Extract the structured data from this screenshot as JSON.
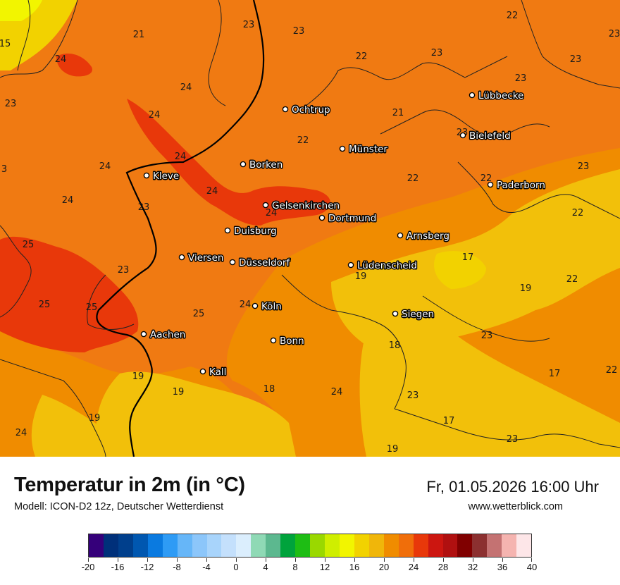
{
  "header": {
    "title": "Temperatur in 2m (in °C)",
    "model": "Modell: ICON-D2 12z, Deutscher Wetterdienst",
    "datetime": "Fr, 01.05.2026 16:00 Uhr",
    "website": "www.wetterblick.com"
  },
  "map": {
    "cities": [
      {
        "name": "Ochtrup"
      },
      {
        "name": "Lübbecke"
      },
      {
        "name": "Münster"
      },
      {
        "name": "Bielefeld"
      },
      {
        "name": "Borken"
      },
      {
        "name": "Kleve"
      },
      {
        "name": "Paderborn"
      },
      {
        "name": "Gelsenkirchen"
      },
      {
        "name": "Dortmund"
      },
      {
        "name": "Duisburg"
      },
      {
        "name": "Arnsberg"
      },
      {
        "name": "Viersen"
      },
      {
        "name": "Düsseldorf"
      },
      {
        "name": "Lüdenscheid"
      },
      {
        "name": "Köln"
      },
      {
        "name": "Siegen"
      },
      {
        "name": "Aachen"
      },
      {
        "name": "Bonn"
      },
      {
        "name": "Kall"
      }
    ],
    "temperature_labels": [
      "15",
      "21",
      "23",
      "23",
      "22",
      "22",
      "23",
      "23",
      "23",
      "23",
      "24",
      "24",
      "23",
      "24",
      "21",
      "24",
      "23",
      "22",
      "24",
      "24",
      "3",
      "22",
      "23",
      "24",
      "24",
      "23",
      "22",
      "22",
      "25",
      "23",
      "17",
      "25",
      "25",
      "22",
      "25",
      "24",
      "19",
      "19",
      "23",
      "18",
      "22",
      "19",
      "19",
      "17",
      "18",
      "24",
      "23",
      "24",
      "19",
      "17",
      "23",
      "19"
    ]
  },
  "legend": {
    "colors": [
      "#35007a",
      "#00307a",
      "#003f8c",
      "#0057b0",
      "#0a7ae0",
      "#2e9bf5",
      "#66b6f8",
      "#8cc6fa",
      "#a8d4fb",
      "#c4e0fc",
      "#dbeefd",
      "#8fd9b5",
      "#5cb88f",
      "#00a33c",
      "#1ebd14",
      "#9ad800",
      "#cfee00",
      "#f2f500",
      "#f2d200",
      "#f0b60a",
      "#f08c00",
      "#f06e0a",
      "#e8380a",
      "#cc1610",
      "#b01010",
      "#800000",
      "#8c3030",
      "#c47272",
      "#f5b4b0",
      "#fde6e8"
    ],
    "ticks": [
      "-20",
      "-16",
      "-12",
      "-8",
      "-4",
      "0",
      "4",
      "8",
      "12",
      "16",
      "20",
      "24",
      "28",
      "32",
      "36",
      "40"
    ]
  }
}
